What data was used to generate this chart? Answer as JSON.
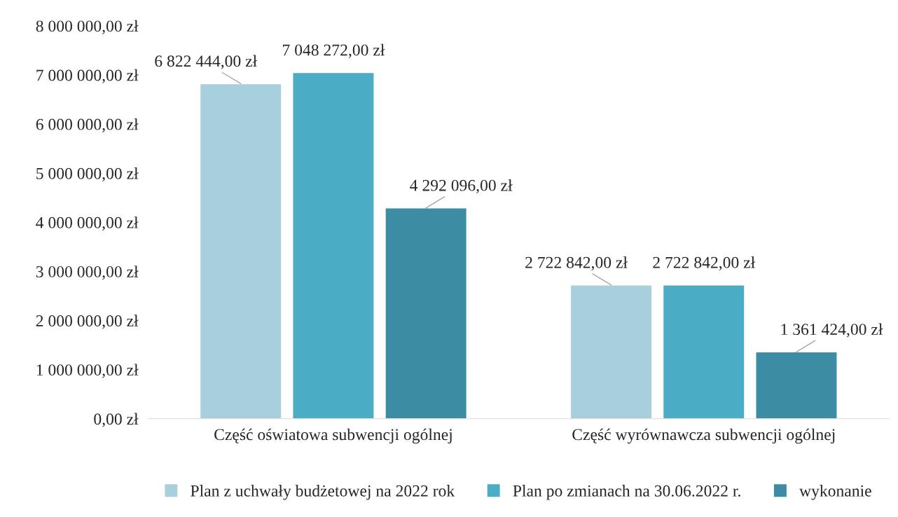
{
  "chart_data": {
    "type": "bar",
    "categories": [
      "Część oświatowa subwencji ogólnej",
      "Część wyrównawcza subwencji ogólnej"
    ],
    "series": [
      {
        "name": "Plan z uchwały budżetowej na 2022 rok",
        "color": "#a8cfdc",
        "values": [
          6822444,
          2722842
        ],
        "value_labels": [
          "6 822 444,00 zł",
          "2 722 842,00 zł"
        ]
      },
      {
        "name": "Plan po zmianach na 30.06.2022 r.",
        "color": "#4bacc6",
        "values": [
          7048272,
          2722842
        ],
        "value_labels": [
          "7 048 272,00 zł",
          "2 722 842,00 zł"
        ]
      },
      {
        "name": "wykonanie",
        "color": "#3c8ca4",
        "values": [
          4292096,
          1361424
        ],
        "value_labels": [
          "4 292 096,00 zł",
          "1 361 424,00 zł"
        ]
      }
    ],
    "ylim": [
      0,
      8000000
    ],
    "yticks": [
      {
        "value": 0,
        "label": "0,00 zł"
      },
      {
        "value": 1000000,
        "label": "1 000 000,00 zł"
      },
      {
        "value": 2000000,
        "label": "2 000 000,00 zł"
      },
      {
        "value": 3000000,
        "label": "3 000 000,00 zł"
      },
      {
        "value": 4000000,
        "label": "4 000 000,00 zł"
      },
      {
        "value": 5000000,
        "label": "5 000 000,00 zł"
      },
      {
        "value": 6000000,
        "label": "6 000 000,00 zł"
      },
      {
        "value": 7000000,
        "label": "7 000 000,00 zł"
      },
      {
        "value": 8000000,
        "label": "8 000 000,00 zł"
      }
    ],
    "grid": false,
    "legend": "bottom"
  }
}
